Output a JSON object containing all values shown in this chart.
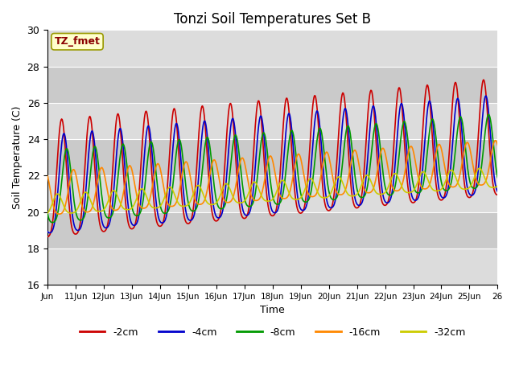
{
  "title": "Tonzi Soil Temperatures Set B",
  "xlabel": "Time",
  "ylabel": "Soil Temperature (C)",
  "ylim": [
    16,
    30
  ],
  "xlim_days": [
    10,
    26
  ],
  "annotation": "TZ_fmet",
  "annotation_color": "#8B0000",
  "annotation_bg": "#FFFFCC",
  "band_colors": [
    "#DCDCDC",
    "#C8C8C8"
  ],
  "series": [
    {
      "label": "-2cm",
      "color": "#CC0000",
      "amp": 3.2,
      "phase": 0.0,
      "base_start": 21.2,
      "base_end": 23.5
    },
    {
      "label": "-4cm",
      "color": "#0000CC",
      "amp": 2.7,
      "phase": 0.08,
      "base_start": 21.0,
      "base_end": 23.2
    },
    {
      "label": "-8cm",
      "color": "#009900",
      "amp": 2.0,
      "phase": 0.18,
      "base_start": 21.0,
      "base_end": 23.0
    },
    {
      "label": "-16cm",
      "color": "#FF8800",
      "amp": 1.2,
      "phase": 0.42,
      "base_start": 20.8,
      "base_end": 22.5
    },
    {
      "label": "-32cm",
      "color": "#CCCC00",
      "amp": 0.55,
      "phase": 0.85,
      "base_start": 20.3,
      "base_end": 21.8
    }
  ],
  "tick_labels": [
    "Jun",
    "11Jun",
    "12Jun",
    "13Jun",
    "14Jun",
    "15Jun",
    "16Jun",
    "17Jun",
    "18Jun",
    "19Jun",
    "20Jun",
    "21Jun",
    "22Jun",
    "23Jun",
    "24Jun",
    "25Jun",
    "26"
  ],
  "tick_positions": [
    10,
    11,
    12,
    13,
    14,
    15,
    16,
    17,
    18,
    19,
    20,
    21,
    22,
    23,
    24,
    25,
    26
  ],
  "yticks": [
    16,
    18,
    20,
    22,
    24,
    26,
    28,
    30
  ]
}
